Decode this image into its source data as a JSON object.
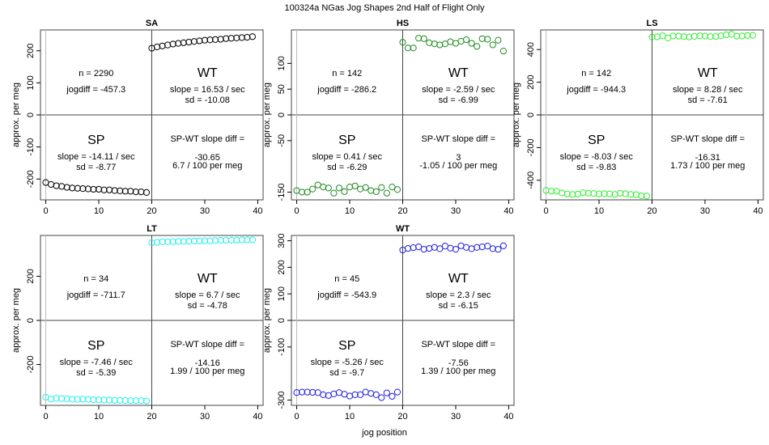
{
  "figure": {
    "title": "100324a   NGas Jog Shapes 2nd Half of Flight Only",
    "xlabel": "jog position"
  },
  "chart_data": [
    {
      "type": "scatter",
      "title": "SA",
      "color": "#000000",
      "ylabel": "approx. per meg",
      "xlim": [
        -1,
        41
      ],
      "ylim": [
        -265,
        265
      ],
      "xticks": [
        0,
        10,
        20,
        30,
        40
      ],
      "yticks": [
        -200,
        -100,
        0,
        100,
        200
      ],
      "x": [
        0,
        1,
        2,
        3,
        4,
        5,
        6,
        7,
        8,
        9,
        10,
        11,
        12,
        13,
        14,
        15,
        16,
        17,
        18,
        19,
        20,
        21,
        22,
        23,
        24,
        25,
        26,
        27,
        28,
        29,
        30,
        31,
        32,
        33,
        34,
        35,
        36,
        37,
        38,
        39
      ],
      "y": [
        -211,
        -217,
        -221,
        -223,
        -226,
        -228,
        -229,
        -230,
        -231,
        -232,
        -232,
        -234,
        -234,
        -236,
        -237,
        -238,
        -238,
        -240,
        -240,
        -242,
        208,
        212,
        215,
        218,
        221,
        223,
        225,
        227,
        229,
        231,
        233,
        234,
        235,
        236,
        238,
        239,
        240,
        241,
        242,
        244
      ],
      "n": "n = 2290",
      "jogdiff": "jogdiff = -457.3",
      "wt_label": "WT",
      "wt_slope": "slope = 16.53 / sec",
      "wt_sd": "sd = -10.08",
      "sp_label": "SP",
      "sp_slope": "slope = -14.11 / sec",
      "sp_sd": "sd = -8.77",
      "diff_title": "SP-WT slope diff =",
      "diff_value": "-30.65",
      "diff_rate": "6.7 / 100 per meg"
    },
    {
      "type": "scatter",
      "title": "HS",
      "color": "#228B22",
      "ylabel": "approx. per meg",
      "xlim": [
        -1,
        41
      ],
      "ylim": [
        -165,
        165
      ],
      "xticks": [
        0,
        10,
        20,
        30,
        40
      ],
      "yticks": [
        -150,
        -50,
        0,
        50,
        100
      ],
      "x": [
        0,
        1,
        2,
        3,
        4,
        5,
        6,
        7,
        8,
        9,
        10,
        11,
        12,
        13,
        14,
        15,
        16,
        17,
        18,
        19,
        20,
        21,
        22,
        23,
        24,
        25,
        26,
        27,
        28,
        29,
        30,
        31,
        32,
        33,
        34,
        35,
        36,
        37,
        38,
        39
      ],
      "y": [
        -147,
        -150,
        -150,
        -144,
        -136,
        -140,
        -142,
        -152,
        -142,
        -149,
        -140,
        -138,
        -144,
        -141,
        -147,
        -149,
        -141,
        -152,
        -140,
        -145,
        141,
        130,
        130,
        149,
        148,
        140,
        138,
        136,
        138,
        142,
        139,
        143,
        146,
        139,
        133,
        148,
        147,
        136,
        145,
        124
      ],
      "n": "n = 142",
      "jogdiff": "jogdiff = -286.2",
      "wt_label": "WT",
      "wt_slope": "slope = -2.59 / sec",
      "wt_sd": "sd = -6.99",
      "sp_label": "SP",
      "sp_slope": "slope = 0.41 / sec",
      "sp_sd": "sd = -6.29",
      "diff_title": "SP-WT slope diff =",
      "diff_value": "3",
      "diff_rate": "-1.05 / 100 per meg"
    },
    {
      "type": "scatter",
      "title": "LS",
      "color": "#33EE33",
      "ylabel": "approx. per meg",
      "xlim": [
        -1,
        41
      ],
      "ylim": [
        -520,
        520
      ],
      "xticks": [
        0,
        10,
        20,
        30,
        40
      ],
      "yticks": [
        -400,
        -200,
        0,
        200,
        400
      ],
      "x": [
        0,
        1,
        2,
        3,
        4,
        5,
        6,
        7,
        8,
        9,
        10,
        11,
        12,
        13,
        14,
        15,
        16,
        17,
        18,
        19,
        20,
        21,
        22,
        23,
        24,
        25,
        26,
        27,
        28,
        29,
        30,
        31,
        32,
        33,
        34,
        35,
        36,
        37,
        38,
        39
      ],
      "y": [
        -462,
        -467,
        -467,
        -478,
        -484,
        -487,
        -485,
        -476,
        -479,
        -481,
        -484,
        -483,
        -484,
        -487,
        -480,
        -483,
        -487,
        -488,
        -495,
        -497,
        476,
        478,
        484,
        471,
        483,
        482,
        479,
        477,
        481,
        484,
        483,
        479,
        480,
        484,
        490,
        494,
        482,
        483,
        486,
        487
      ],
      "n": "n = 142",
      "jogdiff": "jogdiff = -944.3",
      "wt_label": "WT",
      "wt_slope": "slope = 8.28 / sec",
      "wt_sd": "sd = -7.61",
      "sp_label": "SP",
      "sp_slope": "slope = -8.03 / sec",
      "sp_sd": "sd = -9.83",
      "diff_title": "SP-WT slope diff =",
      "diff_value": "-16.31",
      "diff_rate": "1.73 / 100 per meg"
    },
    {
      "type": "scatter",
      "title": "LT",
      "color": "#22EEEE",
      "ylabel": "approx. per meg",
      "xlim": [
        -1,
        41
      ],
      "ylim": [
        -385,
        385
      ],
      "xticks": [
        0,
        10,
        20,
        30,
        40
      ],
      "yticks": [
        -200,
        0,
        200
      ],
      "x": [
        0,
        1,
        2,
        3,
        4,
        5,
        6,
        7,
        8,
        9,
        10,
        11,
        12,
        13,
        14,
        15,
        16,
        17,
        18,
        19,
        20,
        21,
        22,
        23,
        24,
        25,
        26,
        27,
        28,
        29,
        30,
        31,
        32,
        33,
        34,
        35,
        36,
        37,
        38,
        39
      ],
      "y": [
        -348,
        -357,
        -353,
        -354,
        -355,
        -358,
        -358,
        -357,
        -358,
        -360,
        -360,
        -361,
        -361,
        -362,
        -362,
        -363,
        -364,
        -364,
        -364,
        -365,
        352,
        354,
        356,
        356,
        357,
        358,
        358,
        359,
        360,
        360,
        361,
        361,
        362,
        363,
        363,
        364,
        364,
        365,
        365,
        365
      ],
      "n": "n = 34",
      "jogdiff": "jogdiff = -711.7",
      "wt_label": "WT",
      "wt_slope": "slope = 6.7 / sec",
      "wt_sd": "sd = -4.78",
      "sp_label": "SP",
      "sp_slope": "slope = -7.46 / sec",
      "sp_sd": "sd = -5.39",
      "diff_title": "SP-WT slope diff =",
      "diff_value": "-14.16",
      "diff_rate": "1.99 / 100 per meg"
    },
    {
      "type": "scatter",
      "title": "WT",
      "color": "#2222DD",
      "ylabel": "approx. per meg",
      "xlim": [
        -1,
        41
      ],
      "ylim": [
        -320,
        320
      ],
      "xticks": [
        0,
        10,
        20,
        30,
        40
      ],
      "yticks": [
        -300,
        -100,
        0,
        100,
        200,
        300
      ],
      "x": [
        0,
        1,
        2,
        3,
        4,
        5,
        6,
        7,
        8,
        9,
        10,
        11,
        12,
        13,
        14,
        15,
        16,
        17,
        18,
        19,
        20,
        21,
        22,
        23,
        24,
        25,
        26,
        27,
        28,
        29,
        30,
        31,
        32,
        33,
        34,
        35,
        36,
        37,
        38,
        39
      ],
      "y": [
        -272,
        -270,
        -270,
        -271,
        -272,
        -280,
        -283,
        -277,
        -272,
        -278,
        -285,
        -280,
        -280,
        -270,
        -275,
        -280,
        -291,
        -273,
        -286,
        -270,
        265,
        271,
        274,
        277,
        268,
        271,
        275,
        270,
        280,
        272,
        268,
        281,
        275,
        270,
        275,
        277,
        280,
        270,
        268,
        281
      ],
      "n": "n = 45",
      "jogdiff": "jogdiff = -543.9",
      "wt_label": "WT",
      "wt_slope": "slope = 2.3 / sec",
      "wt_sd": "sd = -6.15",
      "sp_label": "SP",
      "sp_slope": "slope = -5.26 / sec",
      "sp_sd": "sd = -9.7",
      "diff_title": "SP-WT slope diff =",
      "diff_value": "-7.56",
      "diff_rate": "1.39 / 100 per meg"
    }
  ]
}
